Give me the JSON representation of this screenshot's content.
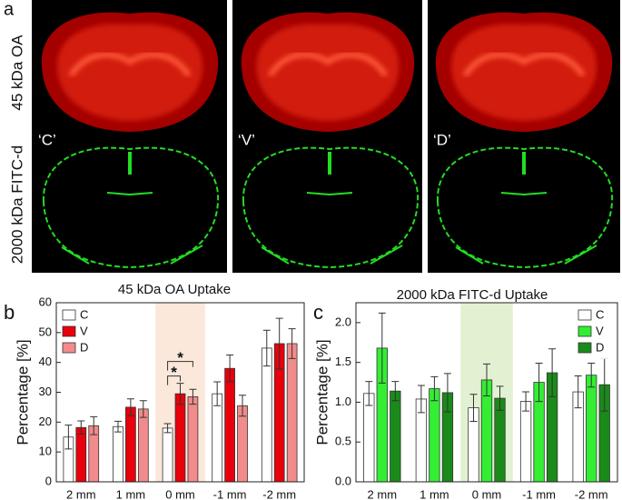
{
  "figure": {
    "panel_labels": [
      "a",
      "b",
      "c"
    ],
    "row_labels": [
      "45 kDa OA",
      "2000 kDa FITC-d"
    ],
    "image_labels": [
      "‘C’",
      "‘V’",
      "‘D’"
    ]
  },
  "chart_data": [
    {
      "type": "bar",
      "title": "45 kDa OA Uptake",
      "y_label": "Percentage [%]",
      "categories": [
        "2 mm",
        "1 mm",
        "0 mm",
        "-1 mm",
        "-2 mm"
      ],
      "series": [
        {
          "name": "C",
          "color": "#ffffff",
          "values": [
            15,
            18.5,
            18,
            29.5,
            44.8
          ],
          "errors": [
            4,
            1.8,
            1.5,
            4,
            6
          ]
        },
        {
          "name": "V",
          "color": "#e8000b",
          "values": [
            18.2,
            25,
            29.5,
            38,
            46.3
          ],
          "errors": [
            2.2,
            2.8,
            3.5,
            4.5,
            8.5
          ]
        },
        {
          "name": "D",
          "color": "#f28b8b",
          "values": [
            18.8,
            24.4,
            28.5,
            25.5,
            46.3
          ],
          "errors": [
            3,
            2.8,
            2.5,
            3.5,
            5
          ]
        }
      ],
      "ylim": [
        0,
        60
      ],
      "yticks": [
        0,
        10,
        20,
        30,
        40,
        50,
        60
      ],
      "highlight": {
        "category": 2,
        "color": "#fbe8da"
      },
      "legend": "top-left",
      "annotations": [
        {
          "text": "*",
          "category": 2,
          "from": 0,
          "to": 1
        },
        {
          "text": "*",
          "category": 2,
          "from": 0,
          "to": 2
        }
      ]
    },
    {
      "type": "bar",
      "title": "2000 kDa FITC-d Uptake",
      "y_label": "Percentage [%]",
      "categories": [
        "2 mm",
        "1 mm",
        "0 mm",
        "-1 mm",
        "-2 mm"
      ],
      "series": [
        {
          "name": "C",
          "color": "#ffffff",
          "values": [
            1.11,
            1.04,
            0.93,
            1.01,
            1.13
          ],
          "errors": [
            0.15,
            0.17,
            0.17,
            0.12,
            0.2
          ]
        },
        {
          "name": "V",
          "color": "#33ee33",
          "values": [
            1.68,
            1.17,
            1.28,
            1.25,
            1.34
          ],
          "errors": [
            0.44,
            0.15,
            0.2,
            0.24,
            0.15
          ]
        },
        {
          "name": "D",
          "color": "#1a8a1a",
          "values": [
            1.14,
            1.12,
            1.05,
            1.37,
            1.22
          ],
          "errors": [
            0.12,
            0.24,
            0.15,
            0.3,
            0.33
          ]
        }
      ],
      "ylim": [
        0,
        2.25
      ],
      "yticks": [
        {
          "value": 0,
          "label": "0.0"
        },
        {
          "value": 0.5,
          "label": "0.5"
        },
        {
          "value": 1,
          "label": "1.0"
        },
        {
          "value": 1.5,
          "label": "1.5"
        },
        {
          "value": 2,
          "label": "2.0"
        }
      ],
      "highlight": {
        "category": 2,
        "color": "#e2f1d2"
      },
      "legend": "top-right",
      "annotations": []
    }
  ]
}
